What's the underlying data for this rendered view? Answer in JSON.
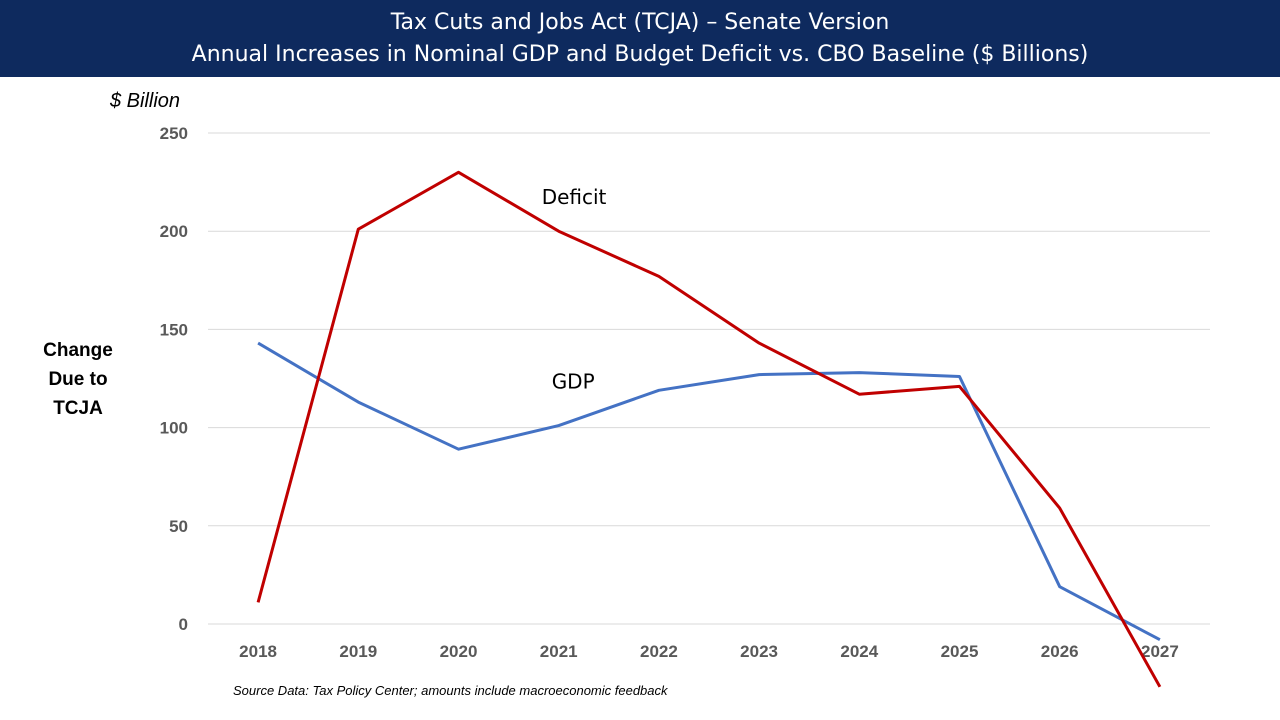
{
  "header": {
    "title_line1": "Tax Cuts and Jobs Act (TCJA) – Senate Version",
    "title_line2": "Annual Increases in Nominal GDP and Budget Deficit vs. CBO Baseline ($ Billions)"
  },
  "axis": {
    "y_unit": "$ Billion",
    "y_label": "Change Due to TCJA"
  },
  "footer": {
    "source": "Source Data:  Tax Policy Center; amounts include macroeconomic feedback"
  },
  "colors": {
    "header_bg": "#0e2a5e",
    "gdp": "#4472c4",
    "deficit": "#c00000",
    "grid": "#d9d9d9"
  },
  "chart_data": {
    "type": "line",
    "title": "Tax Cuts and Jobs Act (TCJA) – Senate Version Annual Increases in Nominal GDP and Budget Deficit vs. CBO Baseline ($ Billions)",
    "xlabel": "",
    "ylabel": "Change Due to TCJA",
    "categories": [
      "2018",
      "2019",
      "2020",
      "2021",
      "2022",
      "2023",
      "2024",
      "2025",
      "2026",
      "2027"
    ],
    "ylim": [
      0,
      250
    ],
    "yticks": [
      0,
      50,
      100,
      150,
      200,
      250
    ],
    "grid": true,
    "legend": "inline labels",
    "series": [
      {
        "name": "GDP",
        "color": "#4472c4",
        "values": [
          143,
          113,
          89,
          101,
          119,
          127,
          128,
          126,
          19,
          -8
        ]
      },
      {
        "name": "Deficit",
        "color": "#c00000",
        "values": [
          11,
          201,
          230,
          200,
          177,
          143,
          117,
          121,
          59,
          -32
        ]
      }
    ]
  }
}
